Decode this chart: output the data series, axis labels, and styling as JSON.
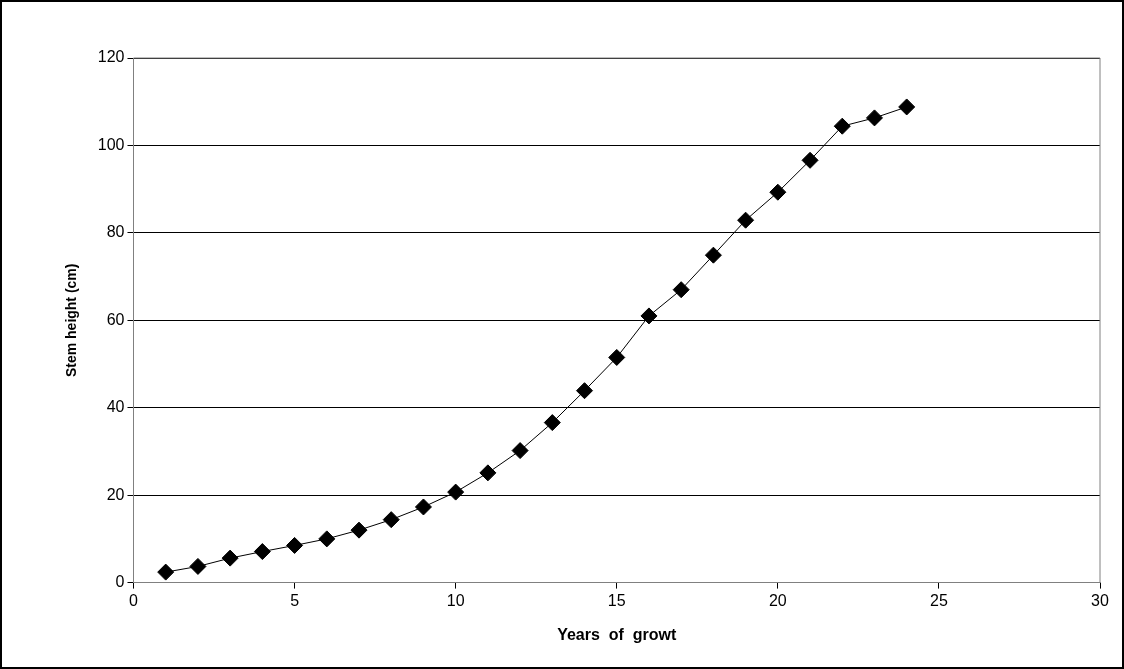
{
  "chart_data": {
    "type": "line",
    "xlabel": "Years  of  growt",
    "ylabel": "Stem height (cm)",
    "x": [
      1,
      2,
      3,
      4,
      5,
      6,
      7,
      8,
      9,
      10,
      11,
      12,
      13,
      14,
      15,
      16,
      17,
      18,
      19,
      20,
      21,
      22,
      23,
      24
    ],
    "series": [
      {
        "color": "#000000",
        "values": [
          2.4,
          3.7,
          5.6,
          7.1,
          8.5,
          10,
          12,
          14.4,
          17.3,
          20.7,
          25.1,
          30.2,
          36.6,
          43.9,
          51.5,
          61,
          67,
          74.9,
          82.9,
          89.3,
          96.6,
          104.4,
          106.3,
          108.8
        ]
      }
    ],
    "xlim": [
      0,
      30
    ],
    "xticks": [
      0,
      5,
      10,
      15,
      20,
      25,
      30
    ],
    "ylim": [
      0,
      120
    ],
    "yticks": [
      0,
      20,
      40,
      60,
      80,
      100,
      120
    ],
    "grid": "y",
    "legend": false,
    "marker": "diamond",
    "line_style": "solid"
  }
}
